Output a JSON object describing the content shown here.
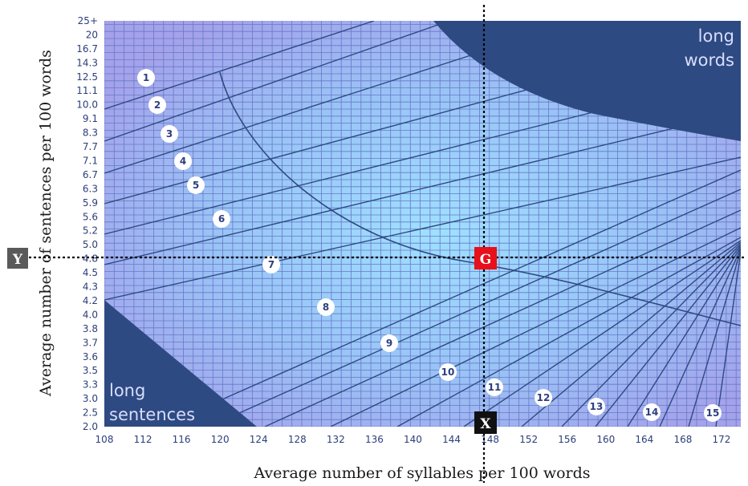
{
  "chart_data": {
    "type": "scatter",
    "xlabel": "Average number of syllables per 100 words",
    "ylabel": "Average number of sentences per 100 words",
    "x_ticks": [
      "108",
      "112",
      "116",
      "120",
      "124",
      "128",
      "132",
      "136",
      "140",
      "144",
      "148",
      "152",
      "156",
      "160",
      "164",
      "168",
      "172"
    ],
    "y_ticks": [
      "2.0",
      "2.5",
      "3.0",
      "3.3",
      "3.5",
      "3.6",
      "3.7",
      "3.8",
      "4.0",
      "4.2",
      "4.3",
      "4.5",
      "4.8",
      "5.0",
      "5.2",
      "5.6",
      "5.9",
      "6.3",
      "6.7",
      "7.1",
      "7.7",
      "8.3",
      "9.1",
      "10.0",
      "11.1",
      "12.5",
      "14.3",
      "16.7",
      "20",
      "25+"
    ],
    "xlim": [
      108,
      174
    ],
    "regions": [
      {
        "name": "long words",
        "label_lines": [
          "long",
          "words"
        ],
        "color": "#2e4a82"
      },
      {
        "name": "long sentences",
        "label_lines": [
          "long",
          "sentences"
        ],
        "color": "#2e4a82"
      }
    ],
    "grade_levels": [
      "1",
      "2",
      "3",
      "4",
      "5",
      "6",
      "7",
      "8",
      "9",
      "10",
      "11",
      "12",
      "13",
      "14",
      "15"
    ],
    "point": {
      "x": 147.5,
      "y": 4.8,
      "marker": "G",
      "x_marker": "X",
      "y_marker": "Y"
    },
    "grid": true
  },
  "colors": {
    "grid_line": "#6878c8",
    "plot_light": "#9fe0ff",
    "plot_dark": "#a4a2ea",
    "region": "#2e4a82",
    "g_marker": "#e8101a",
    "x_marker": "#111111",
    "y_marker": "#5a5a5a"
  }
}
